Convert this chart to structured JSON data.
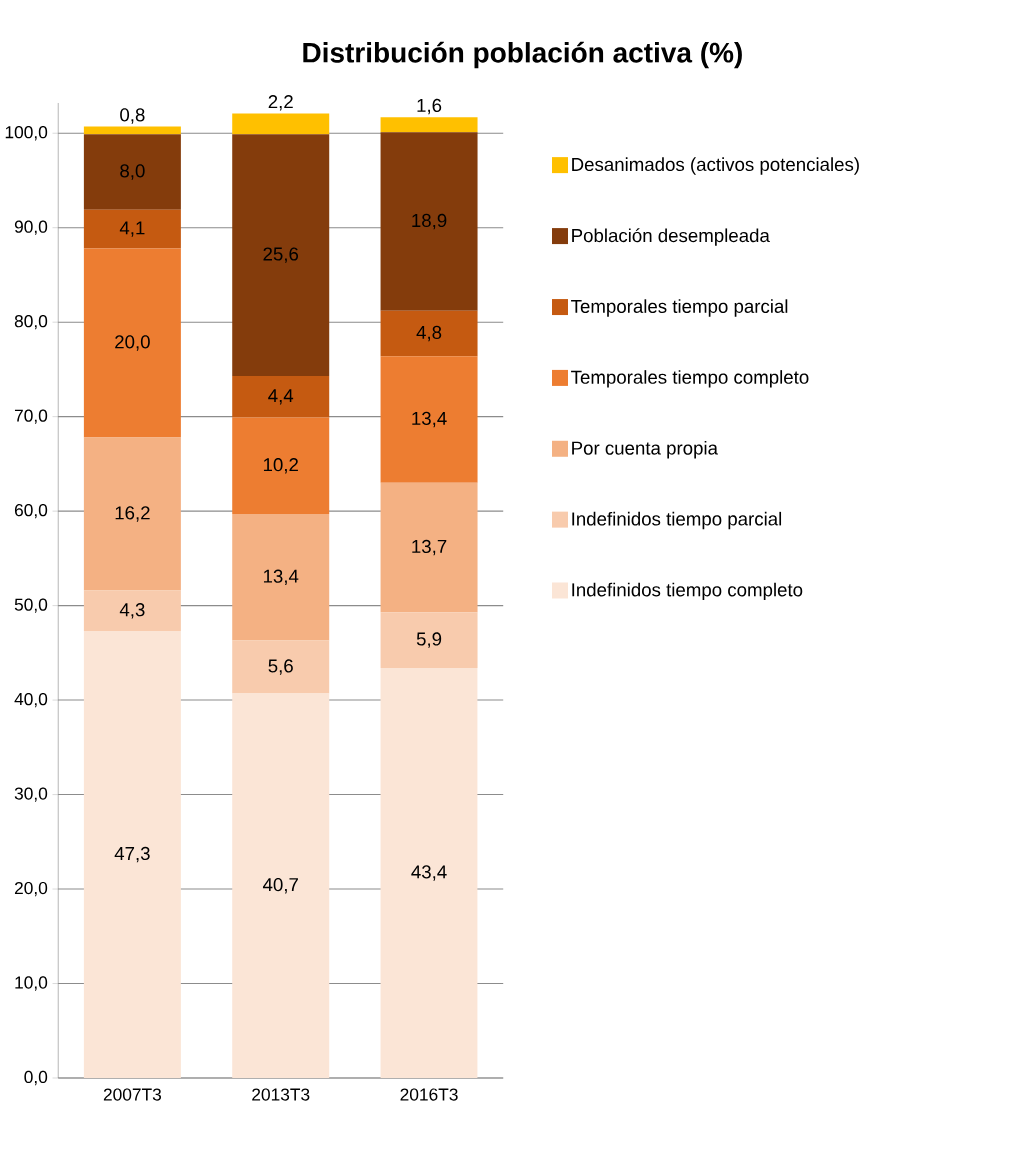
{
  "chart_data": {
    "type": "bar",
    "title": "Distribución población activa (%)",
    "stacked": true,
    "categories": [
      "2007T3",
      "2013T3",
      "2016T3"
    ],
    "series": [
      {
        "name": "Indefinidos tiempo completo",
        "color": "#fbe5d6",
        "values": [
          47.3,
          40.7,
          43.4
        ],
        "value_labels": [
          "47,3",
          "40,7",
          "43,4"
        ]
      },
      {
        "name": "Indefinidos tiempo parcial",
        "color": "#f8cbad",
        "values": [
          4.3,
          5.6,
          5.9
        ],
        "value_labels": [
          "4,3",
          "5,6",
          "5,9"
        ]
      },
      {
        "name": "Por cuenta propia",
        "color": "#f4b183",
        "values": [
          16.2,
          13.4,
          13.7
        ],
        "value_labels": [
          "16,2",
          "13,4",
          "13,7"
        ]
      },
      {
        "name": "Temporales tiempo completo",
        "color": "#ed7d31",
        "values": [
          20.0,
          10.2,
          13.4
        ],
        "value_labels": [
          "20,0",
          "10,2",
          "13,4"
        ]
      },
      {
        "name": "Temporales tiempo parcial",
        "color": "#c55a11",
        "values": [
          4.1,
          4.4,
          4.8
        ],
        "value_labels": [
          "4,1",
          "4,4",
          "4,8"
        ]
      },
      {
        "name": "Población desempleada",
        "color": "#843c0c",
        "values": [
          8.0,
          25.6,
          18.9
        ],
        "value_labels": [
          "8,0",
          "25,6",
          "18,9"
        ]
      },
      {
        "name": "Desanimados (activos potenciales)",
        "color": "#ffc000",
        "values": [
          0.8,
          2.2,
          1.6
        ],
        "value_labels": [
          "0,8",
          "2,2",
          "1,6"
        ]
      }
    ],
    "ylim": [
      0,
      103.2
    ],
    "yticks": [
      {
        "value": 0,
        "label": "0,0"
      },
      {
        "value": 10,
        "label": "10,0"
      },
      {
        "value": 20,
        "label": "20,0"
      },
      {
        "value": 30,
        "label": "30,0"
      },
      {
        "value": 40,
        "label": "40,0"
      },
      {
        "value": 50,
        "label": "50,0"
      },
      {
        "value": 60,
        "label": "60,0"
      },
      {
        "value": 70,
        "label": "70,0"
      },
      {
        "value": 80,
        "label": "80,0"
      },
      {
        "value": 90,
        "label": "90,0"
      },
      {
        "value": 100,
        "label": "100,0"
      }
    ],
    "grid": "y",
    "legend": "right"
  }
}
